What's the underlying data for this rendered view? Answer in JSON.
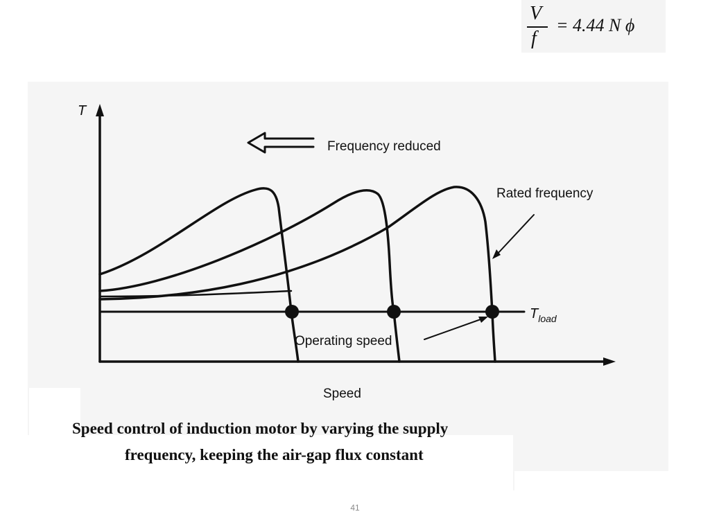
{
  "formula": {
    "numerator": "V",
    "denominator": "f",
    "rhs": "= 4.44 N ϕ"
  },
  "diagram": {
    "y_axis_label": "T",
    "x_axis_label": "Speed",
    "arrow_label": "Frequency reduced",
    "rated_label": "Rated frequency",
    "load_label_main": "T",
    "load_label_sub": "load",
    "operating_label": "Operating speed"
  },
  "caption": {
    "line1": "Speed control of induction motor by varying the supply",
    "line2": "frequency, keeping the air-gap flux constant"
  },
  "footer": {
    "page_number": "41"
  }
}
